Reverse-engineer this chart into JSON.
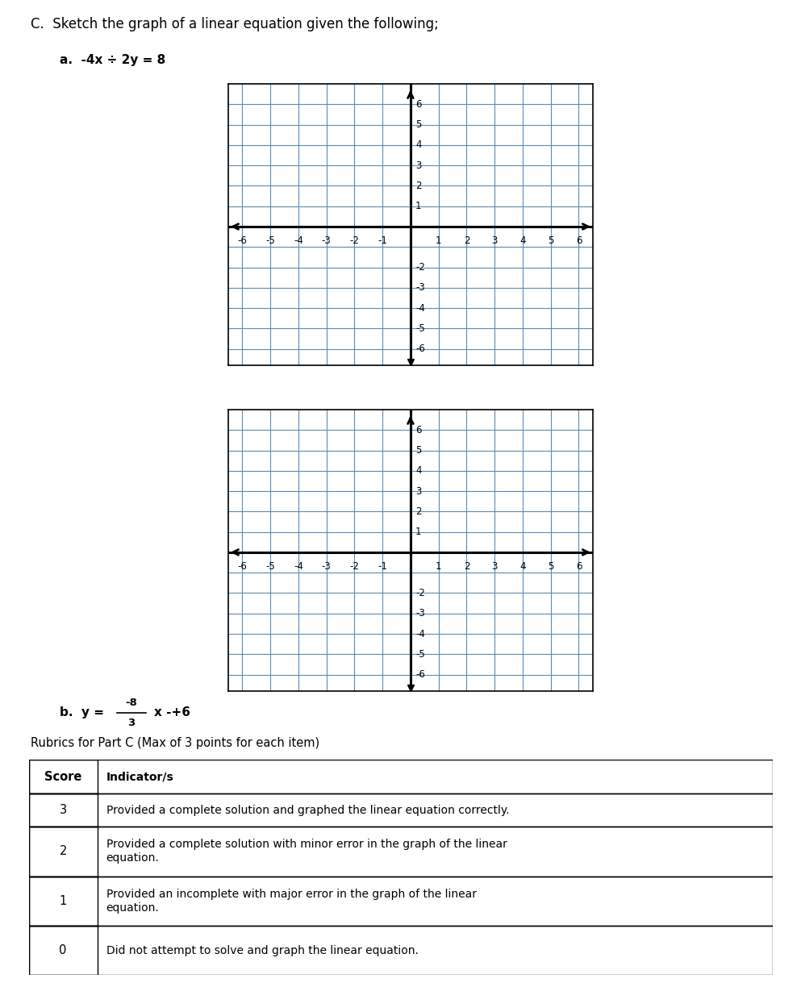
{
  "title_main": "C.  Sketch the graph of a linear equation given the following;",
  "label_a_prefix": "a.  ",
  "label_a_eq": "-4x ÷ 2y = 8",
  "label_b_prefix": "b.  y = ",
  "label_b_frac_num": "-8",
  "label_b_frac_den": "3",
  "label_b_suffix": "x -+6",
  "grid_color": "#5b8ab5",
  "axis_color": "#000000",
  "bg_color": "#ffffff",
  "rubric_title": "Rubrics for Part C (Max of 3 points for each item)",
  "rubric_headers": [
    "Score",
    "Indicator/s"
  ],
  "rubric_rows": [
    [
      "3",
      "Provided a complete solution and graphed the linear equation correctly."
    ],
    [
      "2",
      "Provided a complete solution with minor error in the graph of the linear\nequation."
    ],
    [
      "1",
      "Provided an incomplete with major error in the graph of the linear\nequation."
    ],
    [
      "0",
      "Did not attempt to solve and graph the linear equation."
    ]
  ],
  "font_size_title": 12,
  "font_size_label": 11,
  "font_size_tick": 8.5,
  "font_size_rubric": 10.5
}
